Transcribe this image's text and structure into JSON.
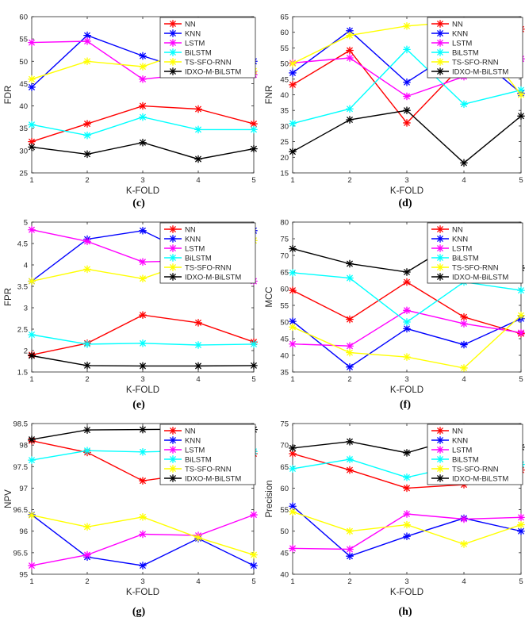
{
  "figure": {
    "legend_names": [
      "NN",
      "KNN",
      "LSTM",
      "BiLSTM",
      "TS-SFO-RNN",
      "IDXO-M-BiLSTM"
    ],
    "series_colors": [
      "#ff0000",
      "#0000ff",
      "#ff00ff",
      "#00ffff",
      "#ffff00",
      "#000000"
    ]
  },
  "chart_data": [
    {
      "type": "line",
      "caption": "(c)",
      "title": "",
      "xlabel": "K-FOLD",
      "ylabel": "FDR",
      "x": [
        1,
        2,
        3,
        4,
        5
      ],
      "xticks": [
        "1",
        "2",
        "3",
        "4",
        "5"
      ],
      "ylim": [
        25,
        60
      ],
      "yticks": [
        "25",
        "30",
        "35",
        "40",
        "45",
        "50",
        "55",
        "60"
      ],
      "legend_position": "top-right-outside",
      "series": [
        {
          "name": "NN",
          "values": [
            32.0,
            36.0,
            40.0,
            39.3,
            36.0
          ]
        },
        {
          "name": "KNN",
          "values": [
            44.2,
            55.8,
            51.2,
            47.3,
            50.0
          ]
        },
        {
          "name": "LSTM",
          "values": [
            54.2,
            54.5,
            46.0,
            47.3,
            47.0
          ]
        },
        {
          "name": "BiLSTM",
          "values": [
            35.8,
            33.4,
            37.5,
            34.7,
            34.7
          ]
        },
        {
          "name": "TS-SFO-RNN",
          "values": [
            46.0,
            50.0,
            48.8,
            53.2,
            47.8
          ]
        },
        {
          "name": "IDXO-M-BiLSTM",
          "values": [
            30.8,
            29.2,
            31.8,
            28.1,
            30.4
          ]
        }
      ]
    },
    {
      "type": "line",
      "caption": "(d)",
      "title": "",
      "xlabel": "K-FOLD",
      "ylabel": "FNR",
      "x": [
        1,
        2,
        3,
        4,
        5
      ],
      "xticks": [
        "1",
        "2",
        "3",
        "4",
        "5"
      ],
      "ylim": [
        15,
        65
      ],
      "yticks": [
        "15",
        "20",
        "25",
        "30",
        "35",
        "40",
        "45",
        "50",
        "55",
        "60",
        "65"
      ],
      "legend_position": "top-right-outside",
      "series": [
        {
          "name": "NN",
          "values": [
            43.2,
            54.2,
            31.0,
            50.0,
            61.0
          ]
        },
        {
          "name": "KNN",
          "values": [
            47.0,
            60.5,
            44.0,
            55.8,
            40.5
          ]
        },
        {
          "name": "LSTM",
          "values": [
            50.2,
            51.8,
            39.5,
            45.8,
            51.5
          ]
        },
        {
          "name": "BiLSTM",
          "values": [
            30.8,
            35.5,
            54.5,
            37.0,
            41.5
          ]
        },
        {
          "name": "TS-SFO-RNN",
          "values": [
            50.0,
            59.0,
            62.0,
            63.5,
            40.0
          ]
        },
        {
          "name": "IDXO-M-BiLSTM",
          "values": [
            21.8,
            32.0,
            35.0,
            18.2,
            33.2
          ]
        }
      ]
    },
    {
      "type": "line",
      "caption": "(e)",
      "title": "",
      "xlabel": "K-FOLD",
      "ylabel": "FPR",
      "x": [
        1,
        2,
        3,
        4,
        5
      ],
      "xticks": [
        "1",
        "2",
        "3",
        "4",
        "5"
      ],
      "ylim": [
        1.5,
        5
      ],
      "yticks": [
        "1.5",
        "2",
        "2.5",
        "3",
        "3.5",
        "4",
        "4.5",
        "5"
      ],
      "legend_position": "top-right-outside",
      "series": [
        {
          "name": "NN",
          "values": [
            1.9,
            2.17,
            2.83,
            2.65,
            2.2
          ]
        },
        {
          "name": "KNN",
          "values": [
            3.62,
            4.6,
            4.8,
            4.17,
            4.8
          ]
        },
        {
          "name": "LSTM",
          "values": [
            4.82,
            4.55,
            4.07,
            4.1,
            3.62
          ]
        },
        {
          "name": "BiLSTM",
          "values": [
            2.37,
            2.15,
            2.17,
            2.13,
            2.15
          ]
        },
        {
          "name": "TS-SFO-RNN",
          "values": [
            3.62,
            3.9,
            3.68,
            4.13,
            4.57
          ]
        },
        {
          "name": "IDXO-M-BiLSTM",
          "values": [
            1.88,
            1.65,
            1.64,
            1.64,
            1.65
          ]
        }
      ]
    },
    {
      "type": "line",
      "caption": "(f)",
      "title": "",
      "xlabel": "K-FOLD",
      "ylabel": "MCC",
      "x": [
        1,
        2,
        3,
        4,
        5
      ],
      "xticks": [
        "1",
        "2",
        "3",
        "4",
        "5"
      ],
      "ylim": [
        35,
        80
      ],
      "yticks": [
        "35",
        "40",
        "45",
        "50",
        "55",
        "60",
        "65",
        "70",
        "75",
        "80"
      ],
      "legend_position": "top-right-outside",
      "series": [
        {
          "name": "NN",
          "values": [
            59.5,
            50.8,
            62.0,
            51.5,
            46.5
          ]
        },
        {
          "name": "KNN",
          "values": [
            50.2,
            36.5,
            48.0,
            43.2,
            51.0
          ]
        },
        {
          "name": "LSTM",
          "values": [
            43.4,
            42.8,
            53.5,
            49.5,
            46.8
          ]
        },
        {
          "name": "BiLSTM",
          "values": [
            64.8,
            63.2,
            50.0,
            62.0,
            59.5
          ]
        },
        {
          "name": "TS-SFO-RNN",
          "values": [
            48.5,
            40.8,
            39.5,
            36.2,
            52.0
          ]
        },
        {
          "name": "IDXO-M-BiLSTM",
          "values": [
            72.0,
            67.5,
            65.0,
            75.5,
            66.2
          ]
        }
      ]
    },
    {
      "type": "line",
      "caption": "(g)",
      "title": "",
      "xlabel": "K-FOLD",
      "ylabel": "NPV",
      "x": [
        1,
        2,
        3,
        4,
        5
      ],
      "xticks": [
        "1",
        "2",
        "3",
        "4",
        "5"
      ],
      "ylim": [
        95,
        98.5
      ],
      "yticks": [
        "95",
        "95.5",
        "96",
        "96.5",
        "97",
        "97.5",
        "98",
        "98.5"
      ],
      "legend_position": "top-right-outside",
      "series": [
        {
          "name": "NN",
          "values": [
            98.1,
            97.83,
            97.17,
            97.35,
            97.8
          ]
        },
        {
          "name": "KNN",
          "values": [
            96.38,
            95.4,
            95.2,
            95.83,
            95.2
          ]
        },
        {
          "name": "LSTM",
          "values": [
            95.2,
            95.45,
            95.93,
            95.9,
            96.38
          ]
        },
        {
          "name": "BiLSTM",
          "values": [
            97.65,
            97.87,
            97.84,
            97.87,
            97.85
          ]
        },
        {
          "name": "TS-SFO-RNN",
          "values": [
            96.37,
            96.1,
            96.33,
            95.85,
            95.45
          ]
        },
        {
          "name": "IDXO-M-BiLSTM",
          "values": [
            98.13,
            98.35,
            98.36,
            98.37,
            98.36
          ]
        }
      ]
    },
    {
      "type": "line",
      "caption": "(h)",
      "title": "",
      "xlabel": "K-FOLD",
      "ylabel": "Precision",
      "x": [
        1,
        2,
        3,
        4,
        5
      ],
      "xticks": [
        "1",
        "2",
        "3",
        "4",
        "5"
      ],
      "ylim": [
        40,
        75
      ],
      "yticks": [
        "40",
        "45",
        "50",
        "55",
        "60",
        "65",
        "70",
        "75"
      ],
      "legend_position": "top-right-outside",
      "series": [
        {
          "name": "NN",
          "values": [
            68.0,
            64.2,
            60.0,
            60.8,
            64.2
          ]
        },
        {
          "name": "KNN",
          "values": [
            55.8,
            44.2,
            48.8,
            53.0,
            50.0
          ]
        },
        {
          "name": "LSTM",
          "values": [
            46.0,
            45.8,
            54.0,
            52.8,
            53.2
          ]
        },
        {
          "name": "BiLSTM",
          "values": [
            64.5,
            66.7,
            62.5,
            65.5,
            65.5
          ]
        },
        {
          "name": "TS-SFO-RNN",
          "values": [
            54.5,
            50.0,
            51.5,
            47.0,
            51.5
          ]
        },
        {
          "name": "IDXO-M-BiLSTM",
          "values": [
            69.3,
            70.8,
            68.2,
            72.0,
            69.5
          ]
        }
      ]
    }
  ]
}
